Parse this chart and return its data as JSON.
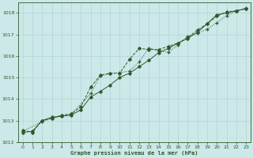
{
  "bg_color": "#cce8e8",
  "grid_color": "#b0d8d8",
  "line_color": "#2d5a2d",
  "title": "Graphe pression niveau de la mer (hPa)",
  "xlim": [
    -0.5,
    23.5
  ],
  "ylim": [
    1012.0,
    1018.5
  ],
  "yticks": [
    1012,
    1013,
    1014,
    1015,
    1016,
    1017,
    1018
  ],
  "xticks": [
    0,
    1,
    2,
    3,
    4,
    5,
    6,
    7,
    8,
    9,
    10,
    11,
    12,
    13,
    14,
    15,
    16,
    17,
    18,
    19,
    20,
    21,
    22,
    23
  ],
  "series1_x": [
    0,
    1,
    2,
    3,
    4,
    5,
    6,
    7,
    8,
    9,
    10,
    11,
    12,
    13,
    14,
    15,
    16,
    17,
    18,
    19,
    20,
    21,
    22,
    23
  ],
  "series1_y": [
    1012.55,
    1012.45,
    1013.0,
    1013.1,
    1013.25,
    1013.3,
    1013.65,
    1014.55,
    1015.1,
    1015.2,
    1015.2,
    1015.85,
    1016.35,
    1016.3,
    1016.3,
    1016.45,
    1016.6,
    1016.85,
    1017.2,
    1017.5,
    1017.85,
    1018.05,
    1018.1,
    1018.2
  ],
  "series2_x": [
    0,
    1,
    2,
    3,
    4,
    5,
    6,
    7,
    8,
    9,
    10,
    11,
    12,
    13,
    14,
    15,
    16,
    17,
    18,
    19,
    20,
    21,
    22,
    23
  ],
  "series2_y": [
    1012.45,
    1012.5,
    1013.0,
    1013.15,
    1013.2,
    1013.25,
    1013.5,
    1014.1,
    1014.35,
    1014.65,
    1015.0,
    1015.2,
    1015.5,
    1015.8,
    1016.15,
    1016.35,
    1016.6,
    1016.82,
    1017.1,
    1017.5,
    1017.92,
    1018.0,
    1018.1,
    1018.2
  ],
  "series3_x": [
    0,
    2,
    3,
    4,
    5,
    7,
    8,
    9,
    10,
    11,
    12,
    13,
    14,
    15,
    16,
    17,
    18,
    19,
    20,
    21,
    22,
    23
  ],
  "series3_y": [
    1012.5,
    1012.95,
    1013.1,
    1013.2,
    1013.3,
    1014.25,
    1015.08,
    1015.18,
    1015.22,
    1015.3,
    1015.72,
    1016.38,
    1016.22,
    1016.18,
    1016.5,
    1016.93,
    1017.05,
    1017.25,
    1017.55,
    1017.88,
    1018.08,
    1018.22
  ]
}
